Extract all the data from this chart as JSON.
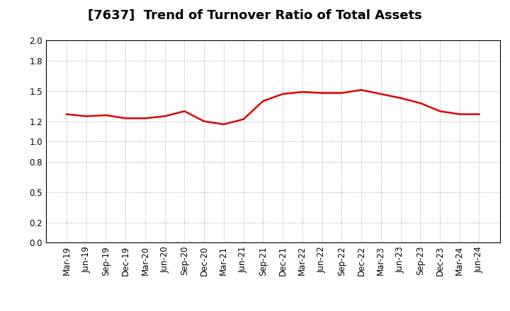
{
  "title": "[7637]  Trend of Turnover Ratio of Total Assets",
  "x_labels": [
    "Mar-19",
    "Jun-19",
    "Sep-19",
    "Dec-19",
    "Mar-20",
    "Jun-20",
    "Sep-20",
    "Dec-20",
    "Mar-21",
    "Jun-21",
    "Sep-21",
    "Dec-21",
    "Mar-22",
    "Jun-22",
    "Sep-22",
    "Dec-22",
    "Mar-23",
    "Jun-23",
    "Sep-23",
    "Dec-23",
    "Mar-24",
    "Jun-24"
  ],
  "y_values": [
    1.27,
    1.25,
    1.26,
    1.23,
    1.23,
    1.25,
    1.3,
    1.2,
    1.17,
    1.22,
    1.4,
    1.47,
    1.49,
    1.48,
    1.48,
    1.51,
    1.47,
    1.43,
    1.38,
    1.3,
    1.27,
    1.27
  ],
  "line_color": "#dd0000",
  "line_width": 1.8,
  "ylim": [
    0.0,
    2.0
  ],
  "yticks": [
    0.0,
    0.2,
    0.5,
    0.8,
    1.0,
    1.2,
    1.5,
    1.8,
    2.0
  ],
  "background_color": "#ffffff",
  "grid_color": "#aaaaaa",
  "title_fontsize": 13,
  "tick_fontsize": 8.5
}
